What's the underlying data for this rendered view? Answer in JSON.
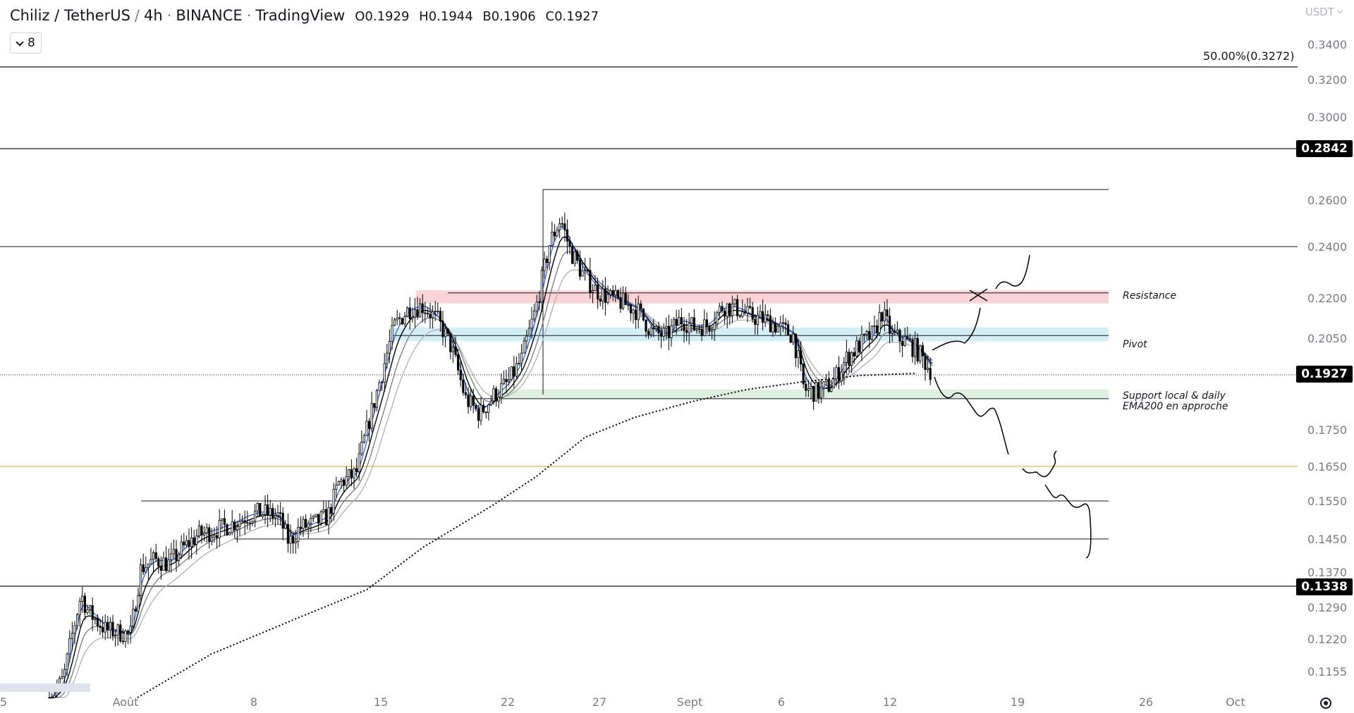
{
  "header": {
    "symbol": "Chiliz / TetherUS",
    "interval": "4h",
    "exchange": "BINANCE",
    "source": "TradingView",
    "ohlc": [
      {
        "label": "O",
        "value": "0.1929"
      },
      {
        "label": "H",
        "value": "0.1944"
      },
      {
        "label": "B",
        "value": "0.1906"
      },
      {
        "label": "C",
        "value": "0.1927"
      }
    ]
  },
  "indicator_toggle": {
    "count": "8"
  },
  "currency": "USDT",
  "fib_label": "50.00%(0.3272)",
  "annotations": {
    "resistance": "Resistance",
    "pivot": "Pivot",
    "support_line1": "Support local & daily",
    "support_line2": "EMA200 en approche"
  },
  "colors": {
    "accent_blue": "#2962ff",
    "resistance_zone": "#f7c4c7",
    "pivot_zone": "#c6e8f1",
    "support_zone": "#d3ecd6",
    "fib_level": "#f2b335",
    "badge": "#000000"
  },
  "chart_data": {
    "type": "candlestick",
    "y_axis": {
      "ticks": [
        "0.3400",
        "0.3200",
        "0.3000",
        "0.2600",
        "0.2400",
        "0.2200",
        "0.2050",
        "0.1750",
        "0.1650",
        "0.1550",
        "0.1450",
        "0.1370",
        "0.1290",
        "0.1220",
        "0.1155"
      ]
    },
    "x_axis": {
      "ticks": [
        "5",
        "Août",
        "8",
        "15",
        "22",
        "27",
        "Sept",
        "6",
        "12",
        "19",
        "26",
        "Oct"
      ]
    },
    "price_badges": [
      {
        "value": "0.2842"
      },
      {
        "value": "0.1927"
      },
      {
        "value": "0.1338"
      }
    ],
    "horizontal_levels": [
      0.3272,
      0.2842,
      0.24,
      0.165,
      0.155,
      0.145,
      0.1338
    ],
    "zones": [
      {
        "name": "Resistance",
        "from": 0.218,
        "to": 0.223
      },
      {
        "name": "Pivot",
        "from": 0.204,
        "to": 0.209
      },
      {
        "name": "Support",
        "from": 0.185,
        "to": 0.188
      }
    ],
    "current_price": 0.1927,
    "grid": false
  }
}
